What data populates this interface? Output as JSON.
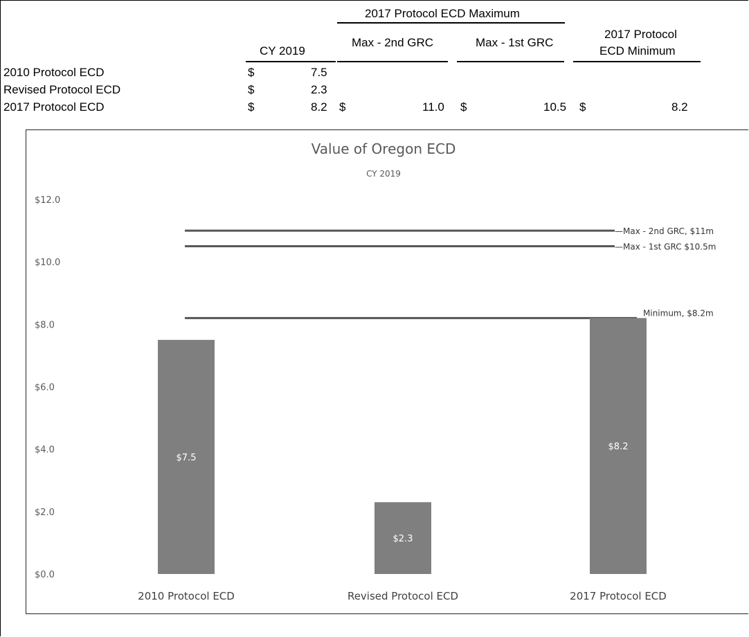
{
  "table": {
    "group_header": "2017 Protocol ECD Maximum",
    "headers": {
      "cy": "CY 2019",
      "max2": "Max - 2nd GRC",
      "max1": "Max - 1st GRC",
      "min_line1": "2017 Protocol",
      "min_line2": "ECD Minimum"
    },
    "currency": "$",
    "rows": [
      {
        "label": "2010 Protocol ECD",
        "cy": "7.5",
        "max2": "",
        "max1": "",
        "min": ""
      },
      {
        "label": "Revised Protocol ECD",
        "cy": "2.3",
        "max2": "",
        "max1": "",
        "min": ""
      },
      {
        "label": "2017 Protocol ECD",
        "cy": "8.2",
        "max2": "11.0",
        "max1": "10.5",
        "min": "8.2"
      }
    ]
  },
  "chart_data": {
    "type": "bar",
    "title": "Value of Oregon ECD",
    "subtitle": "CY 2019",
    "categories": [
      "2010 Protocol ECD",
      "Revised Protocol ECD",
      "2017 Protocol ECD"
    ],
    "values": [
      7.5,
      2.3,
      8.2
    ],
    "data_labels": [
      "$7.5",
      "$2.3",
      "$8.2"
    ],
    "ylim": [
      0,
      12
    ],
    "yticks": [
      0,
      2,
      4,
      6,
      8,
      10,
      12
    ],
    "ytick_labels": [
      "$0.0",
      "$2.0",
      "$4.0",
      "$6.0",
      "$8.0",
      "$10.0",
      "$12.0"
    ],
    "grid": false,
    "reference_lines": [
      {
        "value": 11.0,
        "label": "Max - 2nd GRC, $11m"
      },
      {
        "value": 10.5,
        "label": "Max - 1st GRC $10.5m"
      },
      {
        "value": 8.2,
        "label": "Minimum, $8.2m"
      }
    ],
    "colors": {
      "bar": "#7f7f7f",
      "line": "#555555",
      "label_text": "#ffffff"
    }
  }
}
